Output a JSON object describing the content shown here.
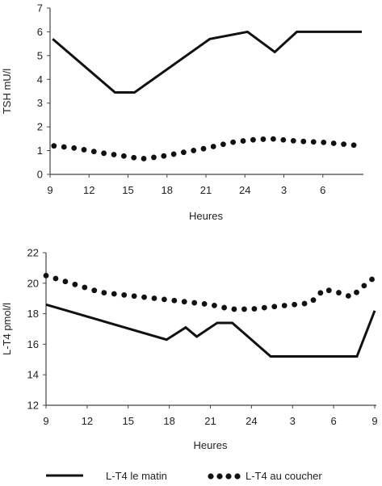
{
  "chart_data": [
    {
      "type": "line",
      "title": "",
      "xlabel": "Heures",
      "ylabel": "TSH mU/l",
      "xlim": [
        0,
        24
      ],
      "ylim": [
        0,
        7
      ],
      "grid": false,
      "x_ticks": [
        {
          "x": 0,
          "label": "9"
        },
        {
          "x": 3,
          "label": "12"
        },
        {
          "x": 6,
          "label": "15"
        },
        {
          "x": 9,
          "label": "18"
        },
        {
          "x": 12,
          "label": "21"
        },
        {
          "x": 15,
          "label": "24"
        },
        {
          "x": 18,
          "label": "3"
        },
        {
          "x": 21,
          "label": "6"
        }
      ],
      "y_ticks": [
        0,
        1,
        2,
        3,
        4,
        5,
        6,
        7
      ],
      "series": [
        {
          "name": "L-T4 le matin",
          "style": "solid",
          "points": [
            [
              0.2,
              5.7
            ],
            [
              5.0,
              3.45
            ],
            [
              6.5,
              3.45
            ],
            [
              12.3,
              5.7
            ],
            [
              15.2,
              6.0
            ],
            [
              17.3,
              5.15
            ],
            [
              19.0,
              6.0
            ],
            [
              24.0,
              6.0
            ]
          ]
        },
        {
          "name": "L-T4 au coucher",
          "style": "dotted",
          "points": [
            [
              0.3,
              1.2
            ],
            [
              2.0,
              1.1
            ],
            [
              4.0,
              0.9
            ],
            [
              6.0,
              0.75
            ],
            [
              7.0,
              0.65
            ],
            [
              8.5,
              0.75
            ],
            [
              10.0,
              0.9
            ],
            [
              12.0,
              1.1
            ],
            [
              14.0,
              1.35
            ],
            [
              15.5,
              1.45
            ],
            [
              17.0,
              1.5
            ],
            [
              19.0,
              1.4
            ],
            [
              21.0,
              1.35
            ],
            [
              24.0,
              1.2
            ]
          ]
        }
      ]
    },
    {
      "type": "line",
      "title": "",
      "xlabel": "Heures",
      "ylabel": "L-T4 pmol/l",
      "xlim": [
        0,
        24
      ],
      "ylim": [
        12,
        22
      ],
      "grid": false,
      "x_ticks": [
        {
          "x": 0,
          "label": "9"
        },
        {
          "x": 3,
          "label": "12"
        },
        {
          "x": 6,
          "label": "15"
        },
        {
          "x": 9,
          "label": "18"
        },
        {
          "x": 12,
          "label": "21"
        },
        {
          "x": 15,
          "label": "24"
        },
        {
          "x": 18,
          "label": "3"
        },
        {
          "x": 21,
          "label": "6"
        },
        {
          "x": 24,
          "label": "9"
        }
      ],
      "y_ticks": [
        12,
        14,
        16,
        18,
        20,
        22
      ],
      "series": [
        {
          "name": "L-T4 le matin",
          "style": "solid",
          "points": [
            [
              0.0,
              18.6
            ],
            [
              8.8,
              16.3
            ],
            [
              10.2,
              17.1
            ],
            [
              11.0,
              16.5
            ],
            [
              12.5,
              17.4
            ],
            [
              13.6,
              17.4
            ],
            [
              16.4,
              15.2
            ],
            [
              22.7,
              15.2
            ],
            [
              24.0,
              18.2
            ]
          ]
        },
        {
          "name": "L-T4 au coucher",
          "style": "dotted",
          "points": [
            [
              0.0,
              20.5
            ],
            [
              4.0,
              19.4
            ],
            [
              8.0,
              19.0
            ],
            [
              12.0,
              18.6
            ],
            [
              13.5,
              18.3
            ],
            [
              15.0,
              18.3
            ],
            [
              17.0,
              18.5
            ],
            [
              19.3,
              18.7
            ],
            [
              20.3,
              19.6
            ],
            [
              21.3,
              19.4
            ],
            [
              22.3,
              19.1
            ],
            [
              23.3,
              19.9
            ],
            [
              24.0,
              20.4
            ]
          ]
        }
      ]
    }
  ],
  "legend": {
    "placement": "bottom",
    "items": [
      {
        "label": "L-T4 le matin",
        "style": "solid"
      },
      {
        "label": "L-T4 au coucher",
        "style": "dotted"
      }
    ]
  }
}
